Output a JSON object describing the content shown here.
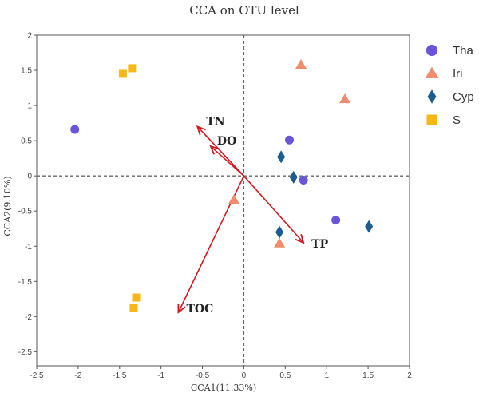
{
  "chart_data": {
    "type": "scatter",
    "title": "CCA on OTU level",
    "xlabel": "CCA1(11.33%)",
    "ylabel": "CCA2(9.10%)",
    "xlim": [
      -2.5,
      2
    ],
    "ylim": [
      -2.7,
      2
    ],
    "xticks": [
      "-2.5",
      "-2",
      "-1.5",
      "-1",
      "-0.5",
      "0",
      "0.5",
      "1",
      "1.5",
      "2"
    ],
    "yticks": [
      "2",
      "1.5",
      "1",
      "0.5",
      "0",
      "-0.5",
      "-1",
      "-1.5",
      "-2",
      "-2.5"
    ],
    "reference_lines": {
      "x": 0,
      "y": 0,
      "style": "dashed"
    },
    "legend_position": "right",
    "series": [
      {
        "name": "Tha",
        "marker": "circle",
        "color": "#6a55d9",
        "points": [
          [
            -2.04,
            0.66
          ],
          [
            0.55,
            0.51
          ],
          [
            0.72,
            -0.06
          ],
          [
            1.11,
            -0.63
          ]
        ]
      },
      {
        "name": "Iri",
        "marker": "triangle",
        "color": "#f28c6f",
        "points": [
          [
            0.69,
            1.58
          ],
          [
            1.22,
            1.09
          ],
          [
            -0.12,
            -0.34
          ],
          [
            0.43,
            -0.96
          ]
        ]
      },
      {
        "name": "Cyp",
        "marker": "diamond",
        "color": "#1b5c91",
        "points": [
          [
            0.45,
            0.27
          ],
          [
            0.6,
            -0.02
          ],
          [
            0.43,
            -0.8
          ],
          [
            1.51,
            -0.72
          ]
        ]
      },
      {
        "name": "S",
        "marker": "square",
        "color": "#f8b718",
        "points": [
          [
            -1.46,
            1.45
          ],
          [
            -1.35,
            1.53
          ],
          [
            -1.3,
            -1.73
          ],
          [
            -1.33,
            -1.88
          ]
        ]
      }
    ],
    "vectors": [
      {
        "label": "TN",
        "x": -0.56,
        "y": 0.7
      },
      {
        "label": "DO",
        "x": -0.4,
        "y": 0.42
      },
      {
        "label": "TP",
        "x": 0.72,
        "y": -0.95
      },
      {
        "label": "TOC",
        "x": -0.79,
        "y": -1.94
      }
    ],
    "vector_color": "#d0181e"
  }
}
